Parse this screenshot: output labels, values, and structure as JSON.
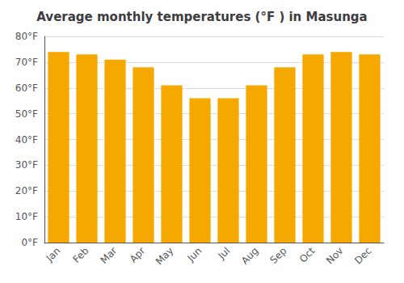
{
  "chart_data": {
    "type": "bar",
    "title": "Average monthly temperatures (°F ) in Masunga",
    "categories": [
      "Jan",
      "Feb",
      "Mar",
      "Apr",
      "May",
      "Jun",
      "Jul",
      "Aug",
      "Sep",
      "Oct",
      "Nov",
      "Dec"
    ],
    "values": [
      74,
      73,
      71,
      68,
      61,
      56,
      56,
      61,
      68,
      73,
      74,
      73
    ],
    "color": "#F5A800",
    "ylim": [
      0,
      80
    ],
    "yticks": [
      {
        "value": 0,
        "label": "0°F"
      },
      {
        "value": 10,
        "label": "10°F"
      },
      {
        "value": 20,
        "label": "20°F"
      },
      {
        "value": 30,
        "label": "30°F"
      },
      {
        "value": 40,
        "label": "40°F"
      },
      {
        "value": 50,
        "label": "50°F"
      },
      {
        "value": 60,
        "label": "60°F"
      },
      {
        "value": 70,
        "label": "70°F"
      },
      {
        "value": 80,
        "label": "80°F"
      }
    ],
    "grid": true
  }
}
